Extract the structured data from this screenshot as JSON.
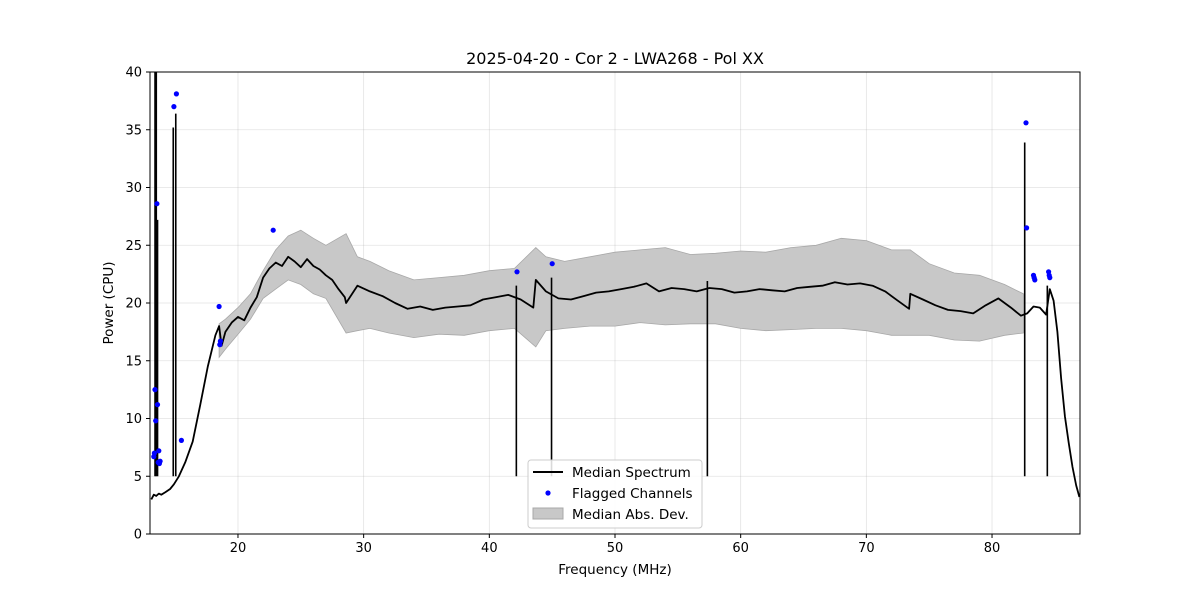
{
  "chart_data": {
    "type": "line",
    "title": "2025-04-20 - Cor 2 - LWA268 - Pol XX",
    "xlabel": "Frequency (MHz)",
    "ylabel": "Power (CPU)",
    "xlim": [
      13.0,
      87.0
    ],
    "ylim": [
      0,
      40
    ],
    "xticks": [
      20,
      30,
      40,
      50,
      60,
      70,
      80
    ],
    "yticks": [
      0,
      5,
      10,
      15,
      20,
      25,
      30,
      35,
      40
    ],
    "grid": true,
    "legend_position": "lower center",
    "legend": [
      "Median Spectrum",
      "Flagged Channels",
      "Median Abs. Dev."
    ],
    "series": [
      {
        "name": "Median Spectrum",
        "kind": "line",
        "color": "#000000",
        "x": [
          13.1,
          13.3,
          13.5,
          13.7,
          13.9,
          14.2,
          14.6,
          14.9,
          15.3,
          15.8,
          16.4,
          17.0,
          17.6,
          18.2,
          18.5,
          18.7,
          19.0,
          19.5,
          20.0,
          20.5,
          21.0,
          21.5,
          22.0,
          22.5,
          23.0,
          23.5,
          24.0,
          24.5,
          25.0,
          25.5,
          26.0,
          26.5,
          27.0,
          27.5,
          28.0,
          28.5,
          28.6,
          29.5,
          30.5,
          31.5,
          32.5,
          33.5,
          34.5,
          35.5,
          36.5,
          37.5,
          38.5,
          39.5,
          40.5,
          41.5,
          42.5,
          43.5,
          43.7,
          44.5,
          45.5,
          46.5,
          47.5,
          48.5,
          49.5,
          50.5,
          51.5,
          52.5,
          53.5,
          54.5,
          55.5,
          56.5,
          57.5,
          58.5,
          59.5,
          60.5,
          61.5,
          62.5,
          63.5,
          64.5,
          65.5,
          66.5,
          67.5,
          68.5,
          69.5,
          70.5,
          71.5,
          72.5,
          73.4,
          73.5,
          74.5,
          75.5,
          76.5,
          77.5,
          78.5,
          79.5,
          80.5,
          81.5,
          82.3,
          82.8,
          83.3,
          83.8,
          84.3,
          84.6,
          84.9,
          85.2,
          85.5,
          85.8,
          86.1,
          86.4,
          86.7,
          86.95
        ],
        "y": [
          3.0,
          3.4,
          3.3,
          3.5,
          3.4,
          3.6,
          3.9,
          4.3,
          5.0,
          6.2,
          8.0,
          11.2,
          14.5,
          17.2,
          18.0,
          16.3,
          17.5,
          18.3,
          18.8,
          18.5,
          19.6,
          20.5,
          22.2,
          23.0,
          23.5,
          23.2,
          24.0,
          23.6,
          23.1,
          23.8,
          23.2,
          22.9,
          22.4,
          22.0,
          21.2,
          20.5,
          20.0,
          21.5,
          21.0,
          20.6,
          20.0,
          19.5,
          19.7,
          19.4,
          19.6,
          19.7,
          19.8,
          20.3,
          20.5,
          20.7,
          20.3,
          19.6,
          22.0,
          21.0,
          20.4,
          20.3,
          20.6,
          20.9,
          21.0,
          21.2,
          21.4,
          21.7,
          21.0,
          21.3,
          21.2,
          21.0,
          21.3,
          21.2,
          20.9,
          21.0,
          21.2,
          21.1,
          21.0,
          21.3,
          21.4,
          21.5,
          21.8,
          21.6,
          21.7,
          21.5,
          21.0,
          20.2,
          19.5,
          20.8,
          20.3,
          19.8,
          19.4,
          19.3,
          19.1,
          19.8,
          20.4,
          19.6,
          18.9,
          19.1,
          19.7,
          19.6,
          19.0,
          21.2,
          20.2,
          17.5,
          13.5,
          10.2,
          7.9,
          5.8,
          4.2,
          3.2
        ]
      },
      {
        "name": "Median Abs. Dev.",
        "kind": "band",
        "color": "#c8c8c8",
        "edge_color": "#a8a8a8",
        "x": [
          18.5,
          19.0,
          20.0,
          21.0,
          22.0,
          23.0,
          24.0,
          25.0,
          26.0,
          27.0,
          28.6,
          29.5,
          30.5,
          32.0,
          34.0,
          36.0,
          38.0,
          40.0,
          42.0,
          43.7,
          44.5,
          46.0,
          48.0,
          50.0,
          52.0,
          54.0,
          56.0,
          58.0,
          60.0,
          62.0,
          64.0,
          66.0,
          68.0,
          70.0,
          72.0,
          73.5,
          75.0,
          77.0,
          79.0,
          81.0,
          82.5
        ],
        "upper": [
          18.2,
          18.6,
          19.6,
          20.8,
          22.8,
          24.6,
          25.8,
          26.3,
          25.6,
          25.0,
          26.0,
          24.0,
          23.6,
          22.8,
          22.0,
          22.2,
          22.4,
          22.8,
          23.0,
          24.8,
          24.0,
          23.6,
          24.0,
          24.4,
          24.6,
          24.8,
          24.2,
          24.3,
          24.5,
          24.4,
          24.8,
          25.0,
          25.6,
          25.4,
          24.6,
          24.6,
          23.4,
          22.6,
          22.4,
          21.6,
          20.8
        ],
        "lower": [
          15.3,
          16.0,
          17.3,
          18.6,
          20.4,
          21.2,
          22.0,
          21.6,
          20.8,
          20.4,
          17.4,
          17.6,
          17.8,
          17.4,
          17.0,
          17.3,
          17.2,
          17.6,
          17.8,
          16.2,
          17.6,
          17.8,
          18.0,
          18.0,
          18.3,
          18.1,
          18.2,
          18.2,
          17.8,
          17.6,
          17.7,
          17.8,
          17.8,
          17.6,
          17.2,
          17.2,
          17.2,
          16.8,
          16.7,
          17.2,
          17.4
        ]
      },
      {
        "name": "Flagged Channels",
        "kind": "scatter",
        "color": "#0000ff",
        "x": [
          13.3,
          13.35,
          13.4,
          13.45,
          13.55,
          13.6,
          13.65,
          13.7,
          13.75,
          13.8,
          14.9,
          15.1,
          15.5,
          18.5,
          18.55,
          18.6,
          22.8,
          42.2,
          45.0,
          82.7,
          82.75,
          83.3,
          83.35,
          83.4,
          84.5,
          84.55,
          84.6
        ],
        "y": [
          6.7,
          7.0,
          12.5,
          9.8,
          28.6,
          11.2,
          6.2,
          7.2,
          6.1,
          6.3,
          37.0,
          38.1,
          8.1,
          19.7,
          16.4,
          16.7,
          26.3,
          22.7,
          23.4,
          35.6,
          26.5,
          22.4,
          22.2,
          22.0,
          22.7,
          22.4,
          22.2
        ]
      },
      {
        "name": "RFI spikes",
        "kind": "spikes",
        "color": "#000000",
        "x": [
          13.4,
          13.5,
          13.6,
          14.85,
          15.05,
          42.15,
          44.95,
          57.35,
          82.6,
          84.4
        ],
        "y": [
          40.0,
          40.0,
          27.2,
          35.2,
          36.4,
          21.5,
          22.2,
          21.9,
          33.9,
          21.5
        ]
      }
    ]
  }
}
